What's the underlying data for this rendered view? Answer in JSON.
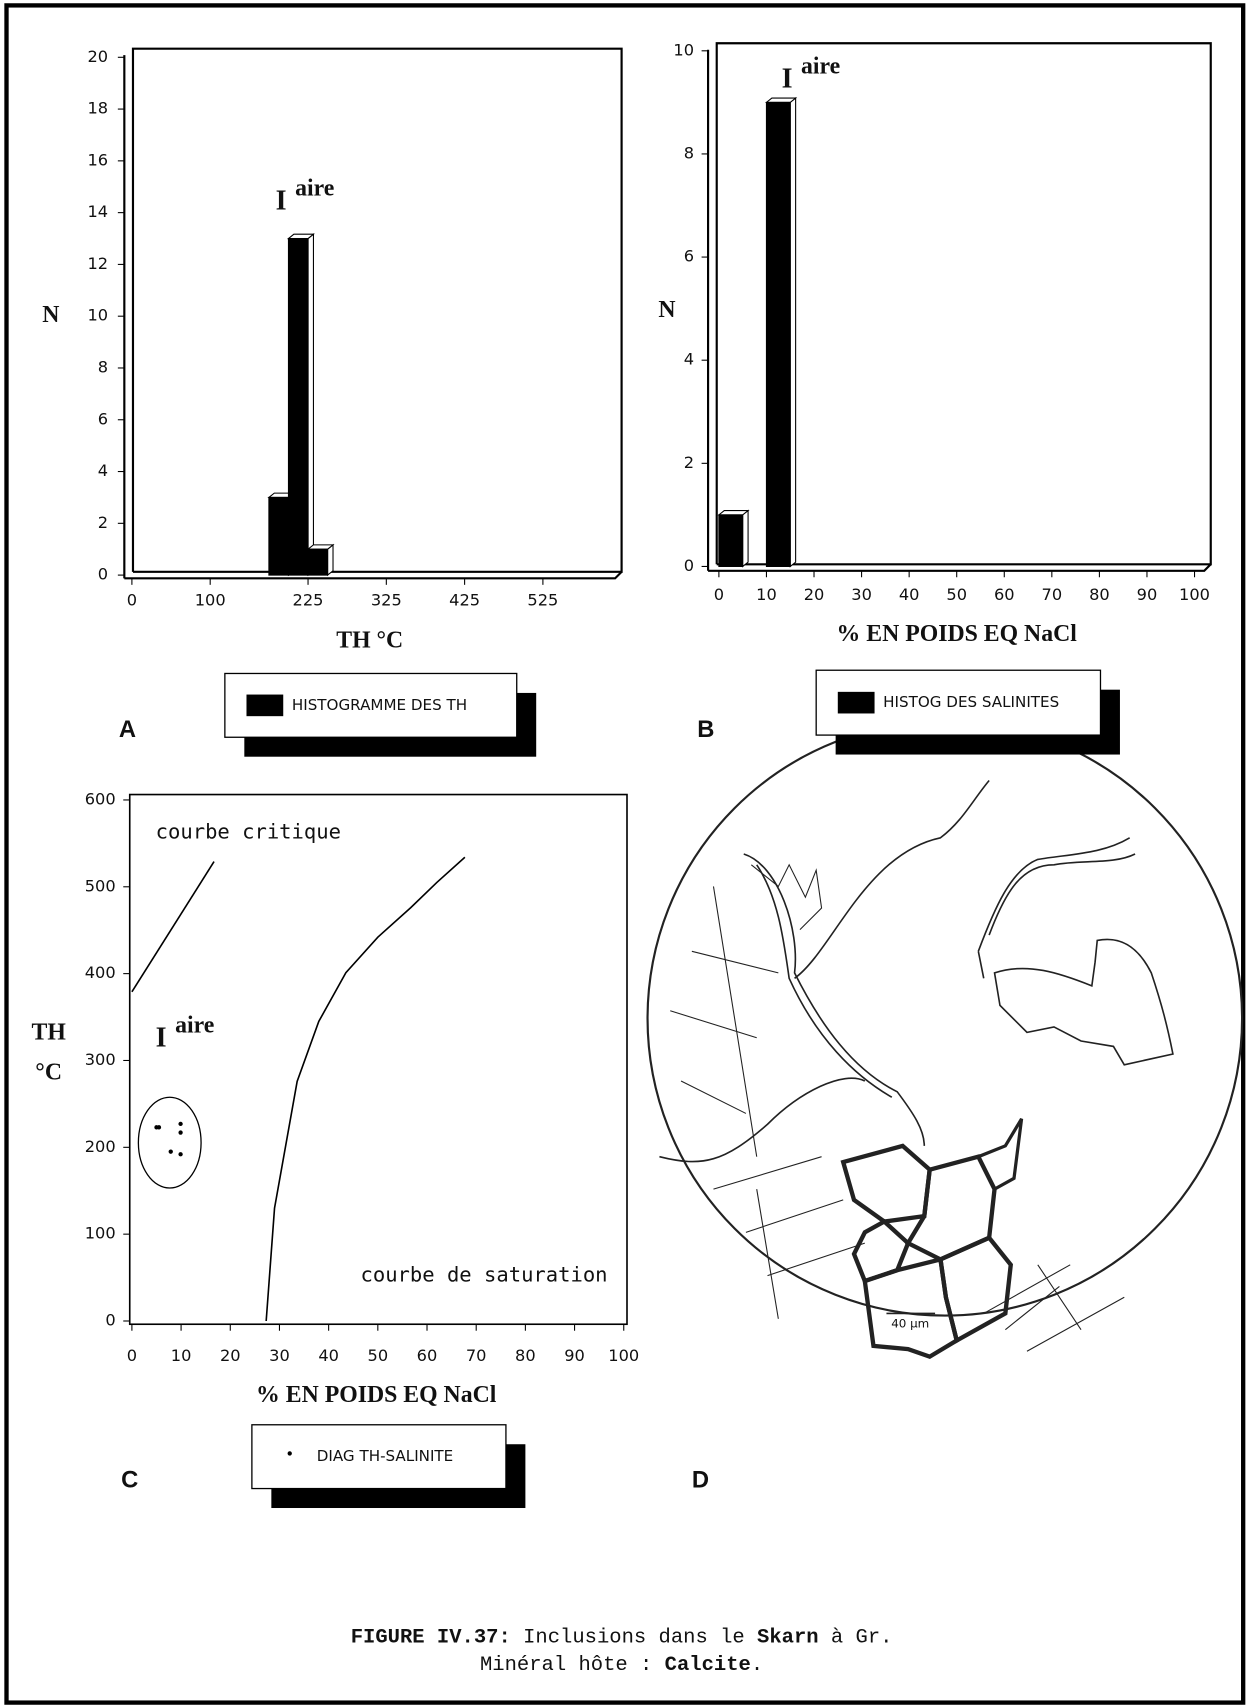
{
  "chart_data": [
    {
      "type": "histogram",
      "panel": "A",
      "x_label": "TH °C",
      "y_label": "N",
      "annotation": "I",
      "annotation_sup": "aire",
      "bins": [
        175,
        200,
        225,
        250
      ],
      "values": [
        3,
        13,
        1
      ],
      "color": "#000000",
      "xlim": [
        0,
        620
      ],
      "xticks": [
        0,
        100,
        225,
        325,
        425,
        525
      ],
      "ylim": [
        0,
        20
      ],
      "yticks": [
        0,
        2,
        4,
        6,
        8,
        10,
        12,
        14,
        16,
        18,
        20
      ],
      "legend": "HISTOGRAMME DES TH"
    },
    {
      "type": "histogram",
      "panel": "B",
      "x_label": "% EN POIDS EQ NaCl",
      "y_label": "N",
      "annotation": "I",
      "annotation_sup": "aire",
      "bins": [
        0,
        5,
        10,
        15
      ],
      "values": [
        1,
        0,
        9
      ],
      "color": "#000000",
      "xlim": [
        0,
        100
      ],
      "xticks": [
        0,
        10,
        20,
        30,
        40,
        50,
        60,
        70,
        80,
        90,
        100
      ],
      "ylim": [
        0,
        10
      ],
      "yticks": [
        0,
        2,
        4,
        6,
        8,
        10
      ],
      "legend": "HISTOG DES SALINITES"
    },
    {
      "type": "scatter",
      "panel": "C",
      "x_label": "% EN POIDS EQ NaCl",
      "y_label": "TH °C",
      "annotation": "I",
      "annotation_sup": "aire",
      "xlim": [
        0,
        100
      ],
      "xticks": [
        0,
        10,
        20,
        30,
        40,
        50,
        60,
        70,
        80,
        90,
        100
      ],
      "ylim": [
        0,
        600
      ],
      "yticks": [
        0,
        100,
        200,
        300,
        400,
        500,
        600
      ],
      "series": [
        {
          "name": "courbe critique",
          "kind": "line",
          "color": "#000000",
          "x": [
            0,
            16.7
          ],
          "values": [
            379,
            529
          ]
        },
        {
          "name": "courbe de saturation",
          "kind": "line",
          "color": "#000000",
          "x": [
            27.3,
            29,
            33.6,
            38,
            43.5,
            50,
            56.7,
            62,
            67.7
          ],
          "values": [
            0,
            130,
            276,
            345,
            401,
            442,
            476,
            505,
            534
          ]
        },
        {
          "name": "DIAG TH-SALINITE",
          "kind": "points",
          "color": "#000000",
          "x": [
            5,
            5.5,
            9.9,
            9.9,
            7.9,
            9.9
          ],
          "values": [
            223,
            223,
            227,
            217,
            195,
            192
          ]
        }
      ]
    }
  ],
  "drawing": {
    "panel": "D",
    "scale_bar": "40 µm"
  },
  "caption": {
    "label": "FIGURE IV.37:",
    "text1": "Inclusions dans le",
    "bold1": "Skarn",
    "text2": "à Gr.",
    "text3": "Minéral hôte :",
    "bold2": "Calcite",
    "text4": "."
  }
}
